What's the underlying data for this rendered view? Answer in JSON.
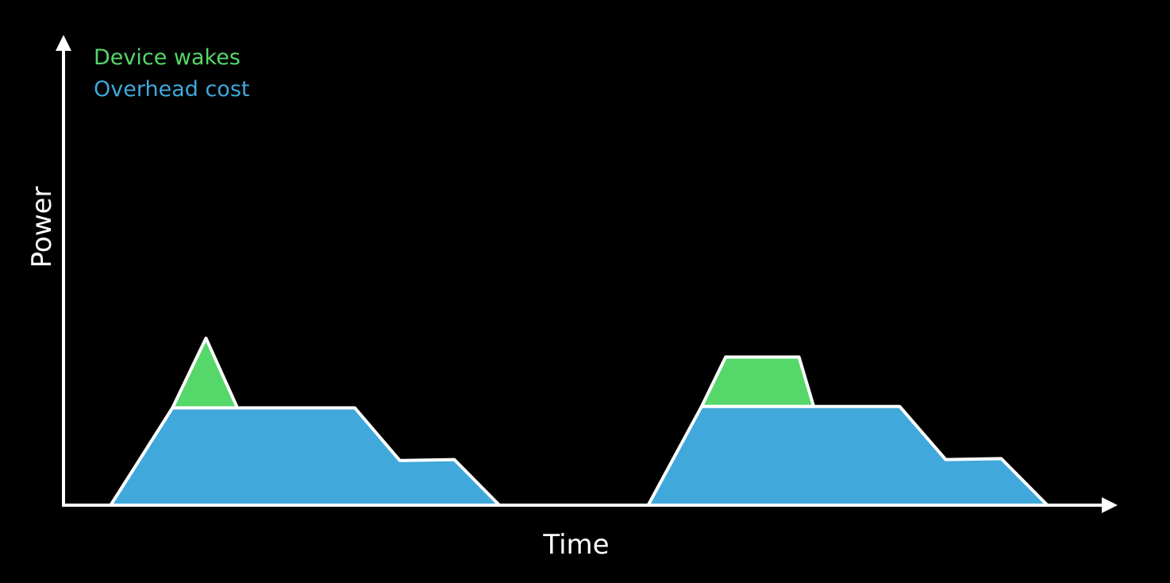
{
  "colors": {
    "background": "#000000",
    "device_wakes": "#55D76A",
    "overhead_cost": "#40A8DA",
    "outline": "#ffffff",
    "axis": "#ffffff"
  },
  "chart_data": {
    "type": "area",
    "xlabel": "Time",
    "ylabel": "Power",
    "grid": false,
    "legend_placement": "top-left",
    "xlim": [
      0,
      1
    ],
    "ylim": [
      0,
      1
    ],
    "series": [
      {
        "name": "Device wakes",
        "key": "device_wakes",
        "shapes": [
          [
            [
              0.104,
              0.207
            ],
            [
              0.136,
              0.355
            ],
            [
              0.166,
              0.207
            ]
          ],
          [
            [
              0.609,
              0.21
            ],
            [
              0.632,
              0.315
            ],
            [
              0.702,
              0.315
            ],
            [
              0.716,
              0.21
            ]
          ]
        ]
      },
      {
        "name": "Overhead cost",
        "key": "overhead_cost",
        "shapes": [
          [
            [
              0.045,
              0.0
            ],
            [
              0.104,
              0.207
            ],
            [
              0.278,
              0.207
            ],
            [
              0.321,
              0.095
            ],
            [
              0.373,
              0.097
            ],
            [
              0.416,
              0.0
            ]
          ],
          [
            [
              0.558,
              0.0
            ],
            [
              0.609,
              0.21
            ],
            [
              0.798,
              0.21
            ],
            [
              0.842,
              0.097
            ],
            [
              0.895,
              0.099
            ],
            [
              0.939,
              0.0
            ]
          ]
        ]
      }
    ]
  }
}
